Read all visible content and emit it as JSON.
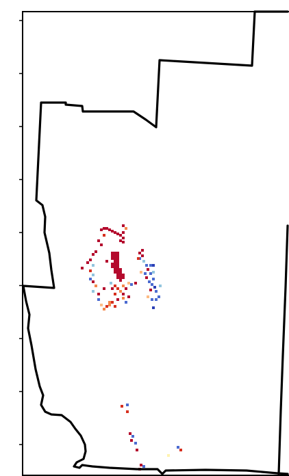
{
  "map": {
    "colors": {
      "background": "#ffffff",
      "boundary": "#000000",
      "dark_red": "#b40a2d",
      "red": "#d7301f",
      "orange": "#f4874b",
      "light_orange": "#fdbb84",
      "pale_yellow": "#fff3b0",
      "light_blue": "#92c5de",
      "blue": "#4b6bd0",
      "dark_blue": "#2b3fb5"
    },
    "y_ticks": 9,
    "pixel_clusters": [
      {
        "name": "central-north-cluster",
        "color_key": "dark_red"
      },
      {
        "name": "central-west-scatter",
        "color_key": "red"
      },
      {
        "name": "central-east-cluster",
        "color_key": "blue"
      },
      {
        "name": "southern-cluster",
        "color_key": "dark_red"
      }
    ]
  }
}
